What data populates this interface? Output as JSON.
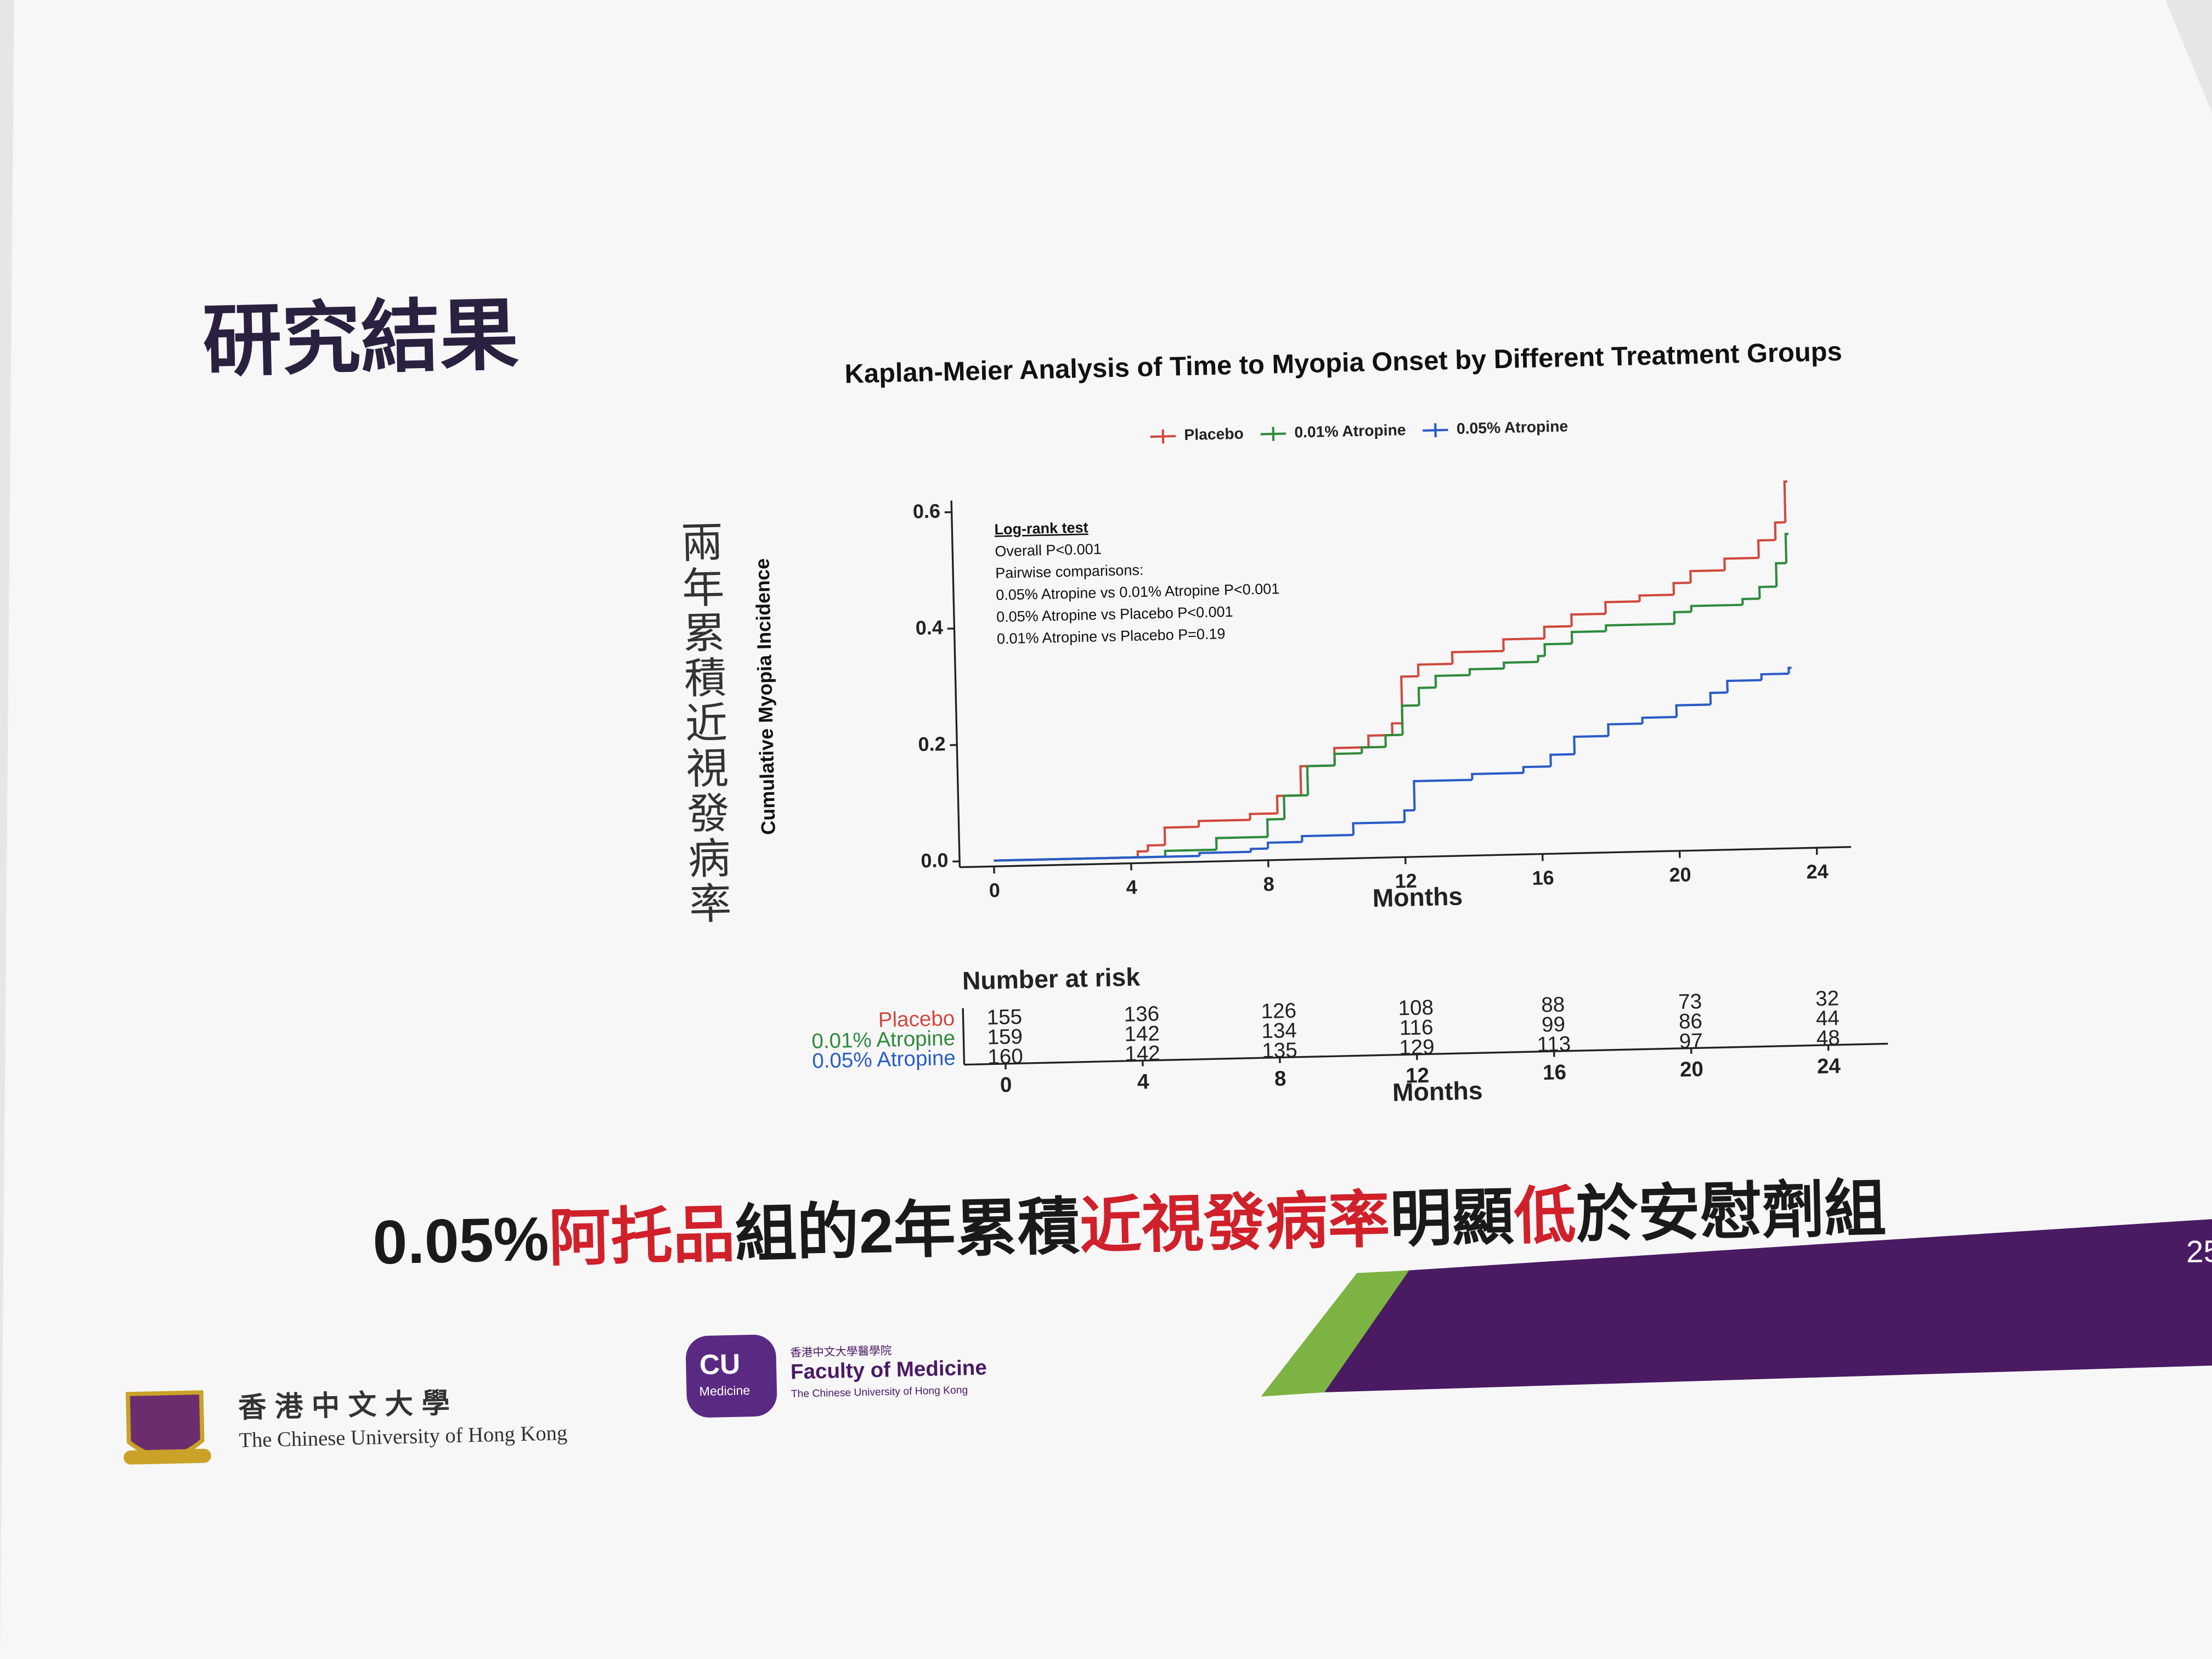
{
  "slide": {
    "title": "研究結果",
    "y_axis_label_zh": "兩年累積近視發病率",
    "caption": [
      "0.05%",
      "阿托品",
      "組的2年累積",
      "近視發病率",
      "明顯",
      "低",
      "於安慰劑組"
    ],
    "caption_highlight": [
      false,
      true,
      false,
      true,
      false,
      true,
      false
    ],
    "page_number": "25",
    "logos": {
      "cuhk_zh": "香港中文大學",
      "cuhk_en": "The Chinese University of Hong Kong",
      "cu_badge": "CU",
      "cu_badge_sub": "Medicine",
      "med_zh": "香港中文大學醫學院",
      "med_en": "Faculty of Medicine",
      "med_sub": "The Chinese University of Hong Kong"
    }
  },
  "chart_data": {
    "type": "line",
    "step": true,
    "title": "Kaplan-Meier Analysis of Time to Myopia Onset by Different Treatment Groups",
    "xlabel": "Months",
    "ylabel": "Cumulative Myopia Incidence",
    "xlim": [
      -1,
      25
    ],
    "ylim": [
      -0.01,
      0.62
    ],
    "xticks": [
      0,
      4,
      8,
      12,
      16,
      20,
      24
    ],
    "yticks": [
      {
        "value": 0,
        "label": "0.0"
      },
      0.2,
      0.4,
      0.6
    ],
    "legend": "top",
    "annotations": [
      "Log-rank test",
      "Overall P<0.001",
      "Pairwise comparisons:",
      "0.05% Atropine vs 0.01% Atropine P<0.001",
      "0.05% Atropine vs Placebo P<0.001",
      "0.01% Atropine vs Placebo P=0.19"
    ],
    "series": [
      {
        "name": "Placebo",
        "color": "#d0493c",
        "x": [
          0,
          4.2,
          4.5,
          5,
          6,
          7.5,
          8.3,
          9,
          10,
          11,
          11.7,
          12,
          12.5,
          13.5,
          15,
          16.2,
          17,
          18,
          19,
          20,
          20.5,
          21.5,
          22.5,
          23,
          23.3
        ],
        "values": [
          0,
          0.01,
          0.02,
          0.05,
          0.06,
          0.07,
          0.1,
          0.15,
          0.18,
          0.2,
          0.22,
          0.3,
          0.32,
          0.34,
          0.36,
          0.38,
          0.4,
          0.42,
          0.43,
          0.45,
          0.47,
          0.49,
          0.52,
          0.55,
          0.62
        ]
      },
      {
        "name": "0.01% Atropine",
        "color": "#2f8a3c",
        "x": [
          0,
          5,
          6.5,
          8,
          8.5,
          9.2,
          10,
          10.8,
          11.5,
          12,
          12.5,
          13,
          14,
          15,
          16,
          16.2,
          17,
          18,
          20,
          20.5,
          22,
          22.5,
          23,
          23.3
        ],
        "values": [
          0,
          0.01,
          0.03,
          0.06,
          0.1,
          0.15,
          0.17,
          0.18,
          0.2,
          0.25,
          0.28,
          0.3,
          0.31,
          0.32,
          0.33,
          0.35,
          0.37,
          0.38,
          0.4,
          0.41,
          0.42,
          0.44,
          0.48,
          0.53
        ]
      },
      {
        "name": "0.05% Atropine",
        "color": "#2b5cc6",
        "x": [
          0,
          6,
          7.5,
          8,
          9,
          10.5,
          12,
          12.3,
          14,
          15.5,
          16.3,
          17,
          18,
          19,
          20,
          21,
          21.5,
          22.5,
          23.3
        ],
        "values": [
          0,
          0.005,
          0.01,
          0.02,
          0.03,
          0.05,
          0.07,
          0.12,
          0.13,
          0.14,
          0.16,
          0.19,
          0.21,
          0.22,
          0.24,
          0.26,
          0.28,
          0.29,
          0.3
        ]
      }
    ],
    "risk_table": {
      "title": "Number at risk",
      "xlabel": "Months",
      "times": [
        0,
        4,
        8,
        12,
        16,
        20,
        24
      ],
      "rows": [
        {
          "name": "Placebo",
          "counts": [
            155,
            136,
            126,
            108,
            88,
            73,
            32
          ]
        },
        {
          "name": "0.01% Atropine",
          "counts": [
            159,
            142,
            134,
            116,
            99,
            86,
            44
          ]
        },
        {
          "name": "0.05% Atropine",
          "counts": [
            160,
            142,
            135,
            129,
            113,
            97,
            48
          ]
        }
      ]
    }
  }
}
